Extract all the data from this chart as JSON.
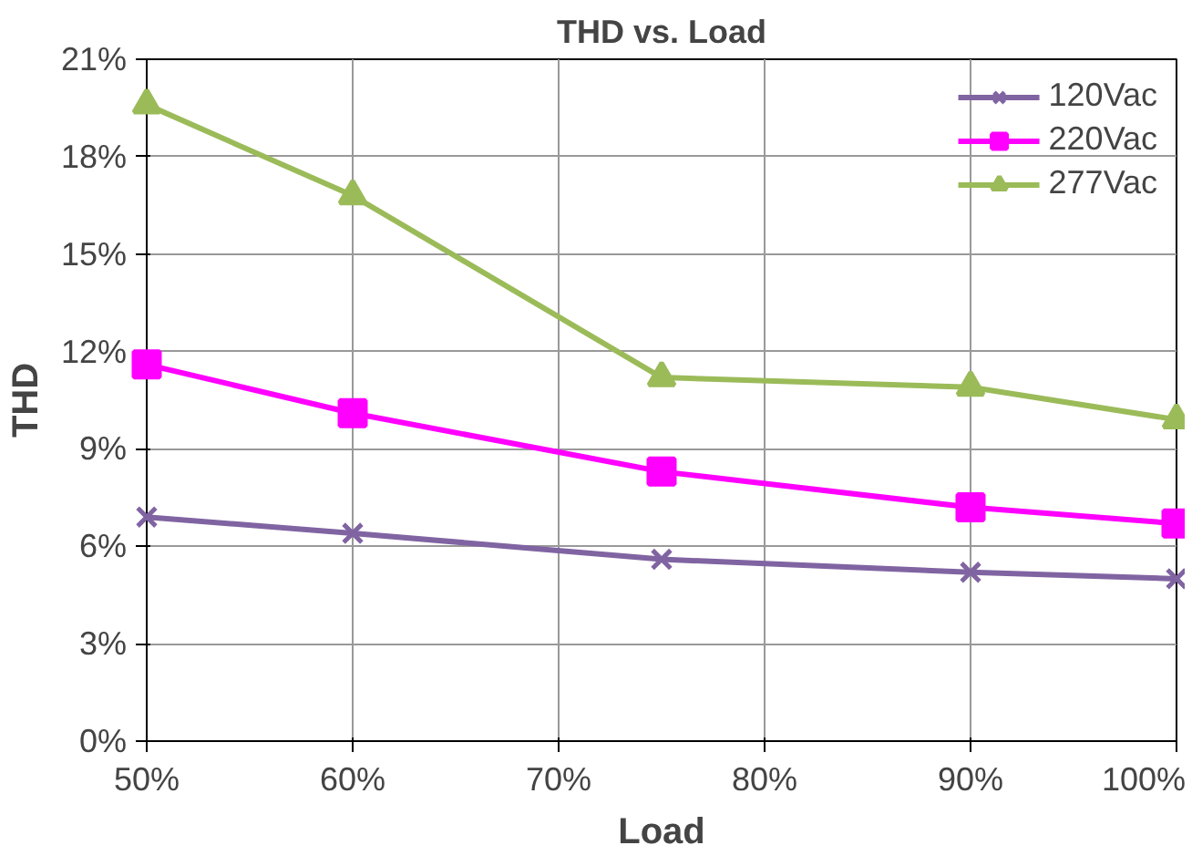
{
  "chart_data": {
    "type": "line",
    "title": "THD vs. Load",
    "xlabel": "Load",
    "ylabel": "THD",
    "x": [
      50,
      60,
      75,
      90,
      100
    ],
    "series": [
      {
        "name": "120Vac",
        "color": "#8064a2",
        "marker": "cross",
        "values": [
          6.9,
          6.4,
          5.6,
          5.2,
          5.0
        ]
      },
      {
        "name": "220Vac",
        "color": "#ff00ff",
        "marker": "square",
        "values": [
          11.6,
          10.1,
          8.3,
          7.2,
          6.7
        ]
      },
      {
        "name": "277Vac",
        "color": "#9bbb59",
        "marker": "triangle",
        "values": [
          19.6,
          16.8,
          11.2,
          10.9,
          9.9
        ]
      }
    ],
    "xlim": [
      50,
      100
    ],
    "xticks": [
      {
        "value": 50,
        "label": "50%"
      },
      {
        "value": 60,
        "label": "60%"
      },
      {
        "value": 70,
        "label": "70%"
      },
      {
        "value": 80,
        "label": "80%"
      },
      {
        "value": 90,
        "label": "90%"
      },
      {
        "value": 100,
        "label": "100%"
      }
    ],
    "ylim": [
      0,
      21
    ],
    "yticks": [
      {
        "value": 0,
        "label": "0%"
      },
      {
        "value": 3,
        "label": "3%"
      },
      {
        "value": 6,
        "label": "6%"
      },
      {
        "value": 9,
        "label": "9%"
      },
      {
        "value": 12,
        "label": "12%"
      },
      {
        "value": 15,
        "label": "15%"
      },
      {
        "value": 18,
        "label": "18%"
      },
      {
        "value": 21,
        "label": "21%"
      }
    ],
    "grid": true,
    "legend": "top right",
    "line_style": "solid"
  }
}
